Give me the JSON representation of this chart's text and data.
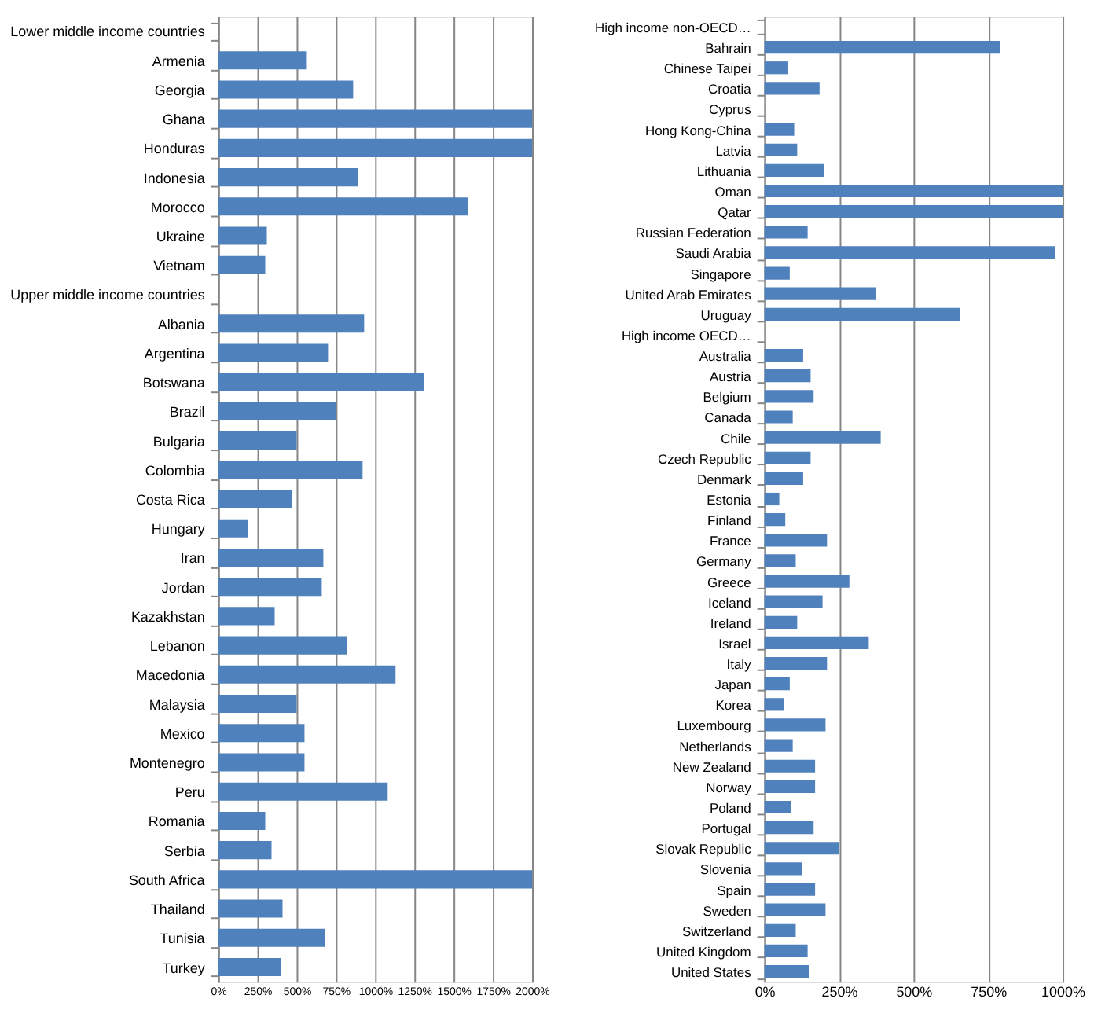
{
  "chart_data": [
    {
      "type": "bar",
      "orientation": "horizontal",
      "color": "#4f81bd",
      "grid": "x",
      "categories": [
        "Lower middle income countries",
        "Armenia",
        "Georgia",
        "Ghana",
        "Honduras",
        "Indonesia",
        "Morocco",
        "Ukraine",
        "Vietnam",
        "Upper middle income countries",
        "Albania",
        "Argentina",
        "Botswana",
        "Brazil",
        "Bulgaria",
        "Colombia",
        "Costa Rica",
        "Hungary",
        "Iran",
        "Jordan",
        "Kazakhstan",
        "Lebanon",
        "Macedonia",
        "Malaysia",
        "Mexico",
        "Montenegro",
        "Peru",
        "Romania",
        "Serbia",
        "South Africa",
        "Thailand",
        "Tunisia",
        "Turkey"
      ],
      "values": [
        null,
        560,
        860,
        2000,
        2000,
        890,
        1590,
        310,
        300,
        null,
        930,
        700,
        1310,
        750,
        500,
        920,
        470,
        190,
        670,
        660,
        360,
        820,
        1130,
        500,
        550,
        550,
        1080,
        300,
        340,
        2000,
        410,
        680,
        400
      ],
      "xlim": [
        0,
        2000
      ],
      "xticks": [
        {
          "value": 0,
          "label": "0%"
        },
        {
          "value": 250,
          "label": "250%"
        },
        {
          "value": 500,
          "label": "500%"
        },
        {
          "value": 750,
          "label": "750%"
        },
        {
          "value": 1000,
          "label": "1000%"
        },
        {
          "value": 1250,
          "label": "1250%"
        },
        {
          "value": 1500,
          "label": "1500%"
        },
        {
          "value": 1750,
          "label": "1750%"
        },
        {
          "value": 2000,
          "label": "2000%"
        }
      ]
    },
    {
      "type": "bar",
      "orientation": "horizontal",
      "color": "#4f81bd",
      "grid": "x",
      "categories": [
        "High income non-OECD…",
        "Bahrain",
        "Chinese Taipei",
        "Croatia",
        "Cyprus",
        "Hong Kong-China",
        "Latvia",
        "Lithuania",
        "Oman",
        "Qatar",
        "Russian Federation",
        "Saudi Arabia",
        "Singapore",
        "United Arab Emirates",
        "Uruguay",
        "High income OECD…",
        "Australia",
        "Austria",
        "Belgium",
        "Canada",
        "Chile",
        "Czech Republic",
        "Denmark",
        "Estonia",
        "Finland",
        "France",
        "Germany",
        "Greece",
        "Iceland",
        "Ireland",
        "Israel",
        "Italy",
        "Japan",
        "Korea",
        "Luxembourg",
        "Netherlands",
        "New Zealand",
        "Norway",
        "Poland",
        "Portugal",
        "Slovak Republic",
        "Slovenia",
        "Spain",
        "Sweden",
        "Switzerland",
        "United Kingdom",
        "United States"
      ],
      "values": [
        null,
        790,
        80,
        185,
        null,
        100,
        110,
        200,
        1000,
        1000,
        145,
        975,
        85,
        375,
        655,
        null,
        130,
        155,
        165,
        95,
        390,
        155,
        130,
        50,
        70,
        210,
        105,
        285,
        195,
        110,
        350,
        210,
        85,
        65,
        205,
        95,
        170,
        170,
        90,
        165,
        250,
        125,
        170,
        205,
        105,
        145,
        150
      ],
      "xlim": [
        0,
        1000
      ],
      "xticks": [
        {
          "value": 0,
          "label": "0%"
        },
        {
          "value": 250,
          "label": "250%"
        },
        {
          "value": 500,
          "label": "500%"
        },
        {
          "value": 750,
          "label": "750%"
        },
        {
          "value": 1000,
          "label": "1000%"
        }
      ]
    }
  ]
}
